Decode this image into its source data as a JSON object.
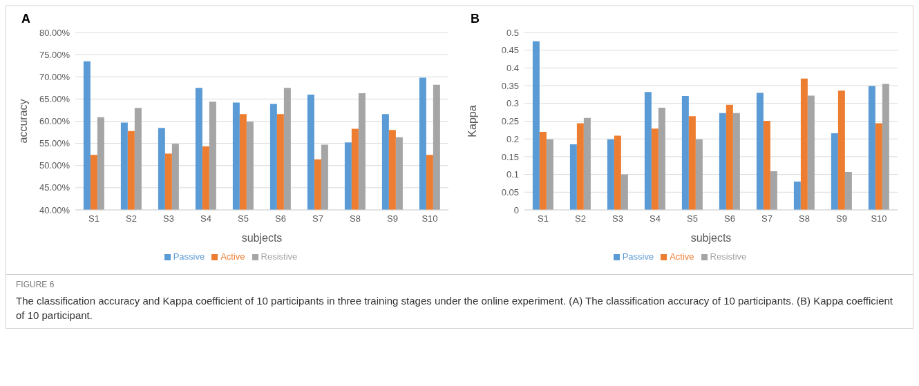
{
  "chart_data": [
    {
      "type": "bar",
      "title": "A",
      "xlabel": "subjects",
      "ylabel": "accuracy",
      "categories": [
        "S1",
        "S2",
        "S3",
        "S4",
        "S5",
        "S6",
        "S7",
        "S8",
        "S9",
        "S10"
      ],
      "series": [
        {
          "name": "Passive",
          "color": "#5b9bd5",
          "values": [
            73.5,
            59.7,
            58.5,
            67.5,
            64.2,
            63.9,
            66.0,
            55.2,
            61.6,
            69.8
          ]
        },
        {
          "name": "Active",
          "color": "#ed7d31",
          "values": [
            52.4,
            57.8,
            52.7,
            54.3,
            61.6,
            61.6,
            51.4,
            58.3,
            58.0,
            52.4
          ]
        },
        {
          "name": "Resistive",
          "color": "#a5a5a5",
          "values": [
            60.9,
            63.0,
            54.9,
            64.4,
            59.9,
            67.5,
            54.7,
            66.3,
            56.4,
            68.2
          ]
        }
      ],
      "ylim": [
        40,
        80
      ],
      "yticks": [
        {
          "value": 40,
          "label": "40.00%"
        },
        {
          "value": 45,
          "label": "45.00%"
        },
        {
          "value": 50,
          "label": "50.00%"
        },
        {
          "value": 55,
          "label": "55.00%"
        },
        {
          "value": 60,
          "label": "60.00%"
        },
        {
          "value": 65,
          "label": "65.00%"
        },
        {
          "value": 70,
          "label": "70.00%"
        },
        {
          "value": 75,
          "label": "75.00%"
        },
        {
          "value": 80,
          "label": "80.00%"
        }
      ],
      "grid": "y",
      "legend": "bottom",
      "annotations": [
        "FIGURE 6",
        "The classification accuracy and Kappa coefficient of 10 participants in three training stages under the online experiment. (A) The classification accuracy of 10 participants. (B) Kappa coefficient of 10 participant."
      ]
    },
    {
      "type": "bar",
      "title": "B",
      "xlabel": "subjects",
      "ylabel": "Kappa",
      "categories": [
        "S1",
        "S2",
        "S3",
        "S4",
        "S5",
        "S6",
        "S7",
        "S8",
        "S9",
        "S10"
      ],
      "series": [
        {
          "name": "Passive",
          "color": "#5b9bd5",
          "values": [
            0.475,
            0.185,
            0.199,
            0.332,
            0.321,
            0.273,
            0.33,
            0.08,
            0.216,
            0.349
          ]
        },
        {
          "name": "Active",
          "color": "#ed7d31",
          "values": [
            0.22,
            0.244,
            0.209,
            0.229,
            0.264,
            0.296,
            0.251,
            0.37,
            0.336,
            0.244
          ]
        },
        {
          "name": "Resistive",
          "color": "#a5a5a5",
          "values": [
            0.199,
            0.259,
            0.1,
            0.288,
            0.199,
            0.273,
            0.109,
            0.322,
            0.107,
            0.355
          ]
        }
      ],
      "ylim": [
        0,
        0.5
      ],
      "yticks": [
        0,
        0.05,
        0.1,
        0.15,
        0.2,
        0.25,
        0.3,
        0.35,
        0.4,
        0.45,
        0.5
      ],
      "grid": "y",
      "legend": "bottom"
    }
  ]
}
